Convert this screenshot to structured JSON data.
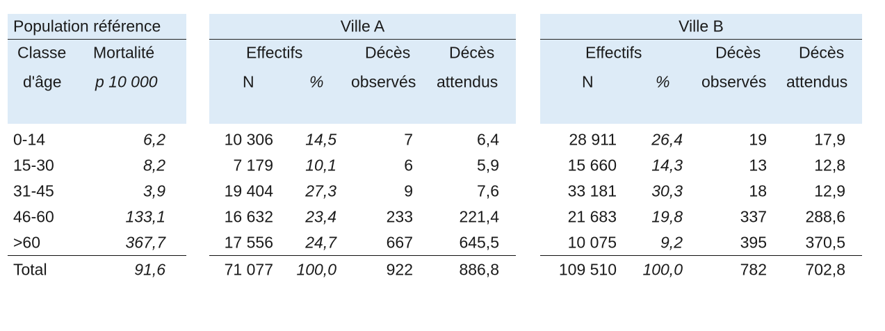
{
  "reference": {
    "title": "Population référence",
    "col_age": "Classe",
    "col_age2": "d'âge",
    "col_mort": "Mortalité",
    "col_mort2": "p 10 000",
    "rows": [
      {
        "age": "0-14",
        "mort": "6,2"
      },
      {
        "age": "15-30",
        "mort": "8,2"
      },
      {
        "age": "31-45",
        "mort": "3,9"
      },
      {
        "age": "46-60",
        "mort": "133,1"
      },
      {
        "age": ">60",
        "mort": "367,7"
      }
    ],
    "total": {
      "label": "Total",
      "mort": "91,6"
    }
  },
  "villeA": {
    "title": "Ville A",
    "effectifs": "Effectifs",
    "n": "N",
    "pct": "%",
    "deces1": "Décès",
    "observes": "observés",
    "deces2": "Décès",
    "attendus": "attendus",
    "rows": [
      {
        "n": "10 306",
        "pct": "14,5",
        "obs": "7",
        "att": "6,4"
      },
      {
        "n": "7 179",
        "pct": "10,1",
        "obs": "6",
        "att": "5,9"
      },
      {
        "n": "19 404",
        "pct": "27,3",
        "obs": "9",
        "att": "7,6"
      },
      {
        "n": "16 632",
        "pct": "23,4",
        "obs": "233",
        "att": "221,4"
      },
      {
        "n": "17 556",
        "pct": "24,7",
        "obs": "667",
        "att": "645,5"
      }
    ],
    "total": {
      "n": "71 077",
      "pct": "100,0",
      "obs": "922",
      "att": "886,8"
    }
  },
  "villeB": {
    "title": "Ville B",
    "effectifs": "Effectifs",
    "n": "N",
    "pct": "%",
    "deces1": "Décès",
    "observes": "observés",
    "deces2": "Décès",
    "attendus": "attendus",
    "rows": [
      {
        "n": "28 911",
        "pct": "26,4",
        "obs": "19",
        "att": "17,9"
      },
      {
        "n": "15 660",
        "pct": "14,3",
        "obs": "13",
        "att": "12,8"
      },
      {
        "n": "33 181",
        "pct": "30,3",
        "obs": "18",
        "att": "12,9"
      },
      {
        "n": "21 683",
        "pct": "19,8",
        "obs": "337",
        "att": "288,6"
      },
      {
        "n": "10 075",
        "pct": "9,2",
        "obs": "395",
        "att": "370,5"
      }
    ],
    "total": {
      "n": "109 510",
      "pct": "100,0",
      "obs": "782",
      "att": "702,8"
    }
  }
}
